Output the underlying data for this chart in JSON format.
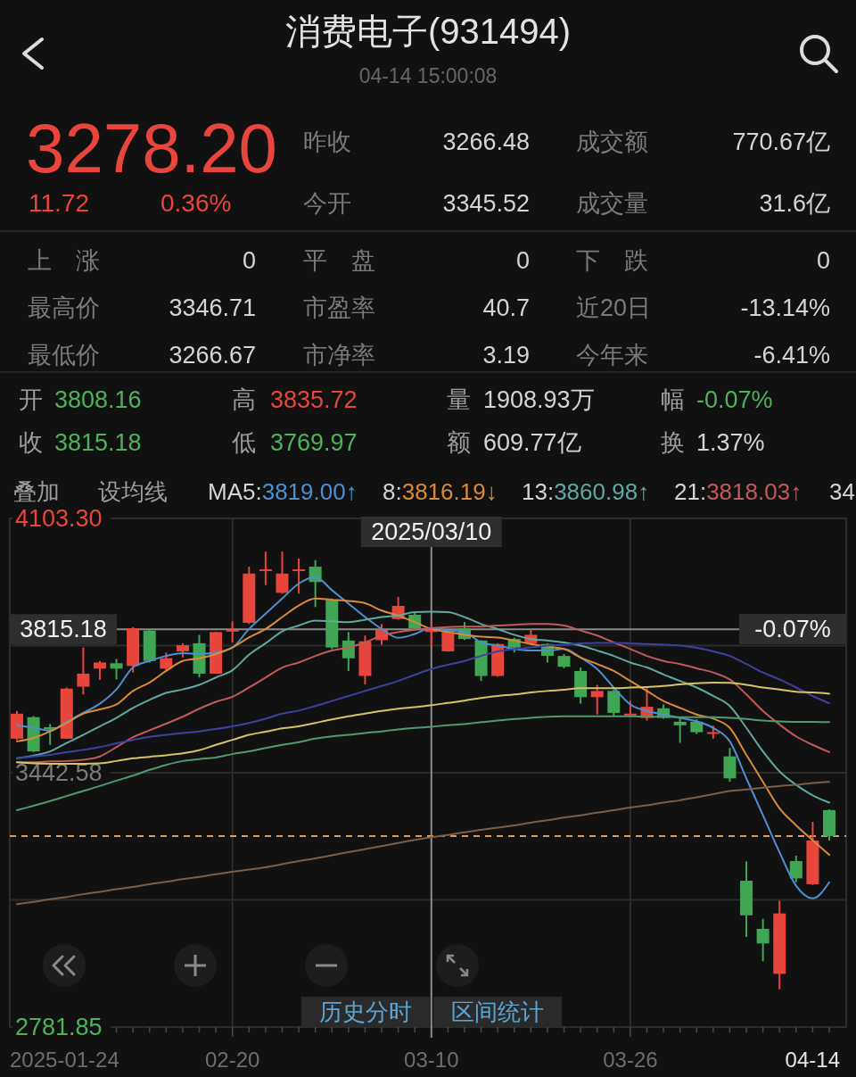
{
  "chart_data": {
    "type": "candlestick",
    "title": "消费电子(931494)",
    "subtitle": "04-14 15:00:08",
    "categories": [
      null,
      null,
      null,
      null,
      null,
      null,
      null,
      null,
      null,
      null,
      null,
      null,
      null,
      "02-20",
      null,
      null,
      null,
      null,
      null,
      null,
      null,
      null,
      null,
      null,
      null,
      "03-10",
      null,
      null,
      null,
      null,
      null,
      null,
      null,
      null,
      null,
      null,
      null,
      "03-26",
      null,
      null,
      null,
      null,
      null,
      null,
      null,
      null,
      null,
      null,
      null,
      null
    ],
    "ohlc": [
      [
        3531,
        3603,
        3528,
        3596
      ],
      [
        3587,
        3590,
        3496,
        3498
      ],
      [
        3561,
        3569,
        3515,
        3555
      ],
      [
        3531,
        3664,
        3531,
        3661
      ],
      [
        3666,
        3768,
        3646,
        3700
      ],
      [
        3713,
        3733,
        3684,
        3729
      ],
      [
        3727,
        3738,
        3685,
        3713
      ],
      [
        3720,
        3821,
        3703,
        3818
      ],
      [
        3812,
        3814,
        3729,
        3733
      ],
      [
        3713,
        3755,
        3707,
        3740
      ],
      [
        3758,
        3779,
        3742,
        3774
      ],
      [
        3779,
        3801,
        3690,
        3700
      ],
      [
        3700,
        3809,
        3700,
        3808
      ],
      [
        3810,
        3836,
        3781,
        3814
      ],
      [
        3832,
        3978,
        3829,
        3960
      ],
      [
        3967,
        4017,
        3930,
        3971
      ],
      [
        3910,
        4017,
        3908,
        3960
      ],
      [
        3967,
        3999,
        3908,
        3971
      ],
      [
        3978,
        3995,
        3873,
        3938
      ],
      [
        3892,
        3895,
        3764,
        3768
      ],
      [
        3786,
        3808,
        3707,
        3740
      ],
      [
        3694,
        3799,
        3672,
        3784
      ],
      [
        3787,
        3829,
        3775,
        3814
      ],
      [
        3842,
        3899,
        3840,
        3876
      ],
      [
        3853,
        3860,
        3816,
        3818
      ],
      [
        3808.16,
        3835.72,
        3769.97,
        3815.18
      ],
      [
        3758,
        3810,
        3757,
        3808
      ],
      [
        3818,
        3834,
        3787,
        3790
      ],
      [
        3786,
        3787,
        3681,
        3694
      ],
      [
        3694,
        3779,
        3692,
        3777
      ],
      [
        3790,
        3793,
        3755,
        3768
      ],
      [
        3779,
        3816,
        3777,
        3801
      ],
      [
        3777,
        3779,
        3729,
        3746
      ],
      [
        3746,
        3751,
        3714,
        3718
      ],
      [
        3707,
        3716,
        3622,
        3639
      ],
      [
        3639,
        3671,
        3594,
        3655
      ],
      [
        3655,
        3659,
        3589,
        3598
      ],
      [
        3594,
        3630,
        3593,
        3596
      ],
      [
        3585,
        3662,
        3578,
        3614
      ],
      [
        3610,
        3620,
        3583,
        3585
      ],
      [
        3575,
        3585,
        3520,
        3566
      ],
      [
        3575,
        3581,
        3543,
        3548
      ],
      [
        3544,
        3565,
        3531,
        3548
      ],
      [
        3485,
        3507,
        3419,
        3428
      ],
      [
        3162,
        3212,
        3016,
        3072
      ],
      [
        3037,
        3063,
        2953,
        2999
      ],
      [
        2920,
        3110,
        2880,
        3077
      ],
      [
        3213,
        3227,
        3158,
        3168
      ],
      [
        3153,
        3315,
        3151,
        3266.48
      ],
      [
        3345.52,
        3346.71,
        3266.67,
        3278.2
      ]
    ],
    "colors": [
      "#e8453c",
      "#3fa653",
      "#3fa653",
      "#e8453c",
      "#e8453c",
      "#e8453c",
      "#3fa653",
      "#e8453c",
      "#3fa653",
      "#e8453c",
      "#e8453c",
      "#3fa653",
      "#e8453c",
      "#e8453c",
      "#e8453c",
      "#e8453c",
      "#e8453c",
      "#e8453c",
      "#3fa653",
      "#3fa653",
      "#3fa653",
      "#e8453c",
      "#e8453c",
      "#e8453c",
      "#3fa653",
      "#e8453c",
      "#e8453c",
      "#3fa653",
      "#3fa653",
      "#e8453c",
      "#3fa653",
      "#e8453c",
      "#3fa653",
      "#3fa653",
      "#3fa653",
      "#e8453c",
      "#3fa653",
      "#e8453c",
      "#e8453c",
      "#3fa653",
      "#3fa653",
      "#3fa653",
      "#e8453c",
      "#3fa653",
      "#3fa653",
      "#3fa653",
      "#e8453c",
      "#3fa653",
      "#e8453c",
      "#3fa653"
    ],
    "series": [
      {
        "type": "line",
        "color": "#4e8fd0",
        "values": [
          3566,
          3559,
          3552,
          3575,
          3598,
          3622,
          3659,
          3716,
          3733,
          3746,
          3753,
          3751,
          3755,
          3768,
          3816,
          3856,
          3895,
          3934,
          3951,
          3917,
          3882,
          3847,
          3816,
          3793,
          3803,
          3819.0,
          3812,
          3808,
          3781,
          3773,
          3764,
          3760,
          3760,
          3764,
          3742,
          3712,
          3664,
          3620,
          3603,
          3594,
          3585,
          3576,
          3559,
          3524,
          3428,
          3332,
          3236,
          3149,
          3116,
          3158
        ]
      },
      {
        "type": "line",
        "color": "#d98a3a",
        "values": [
          3524,
          3533,
          3550,
          3572,
          3596,
          3607,
          3620,
          3655,
          3677,
          3707,
          3733,
          3740,
          3751,
          3768,
          3794,
          3816,
          3847,
          3877,
          3895,
          3892,
          3889,
          3883,
          3864,
          3851,
          3834,
          3816.19,
          3808,
          3801,
          3796,
          3794,
          3786,
          3777,
          3770,
          3764,
          3742,
          3725,
          3707,
          3681,
          3655,
          3629,
          3611,
          3594,
          3583,
          3559,
          3489,
          3419,
          3350,
          3306,
          3267,
          3229
        ]
      },
      {
        "type": "line",
        "color": "#5fa9a0",
        "values": [
          3480,
          3487,
          3498,
          3520,
          3541,
          3563,
          3585,
          3611,
          3632,
          3650,
          3659,
          3671,
          3690,
          3709,
          3749,
          3779,
          3810,
          3825,
          3838,
          3836,
          3834,
          3840,
          3847,
          3851,
          3860,
          3860.98,
          3860,
          3847,
          3829,
          3816,
          3801,
          3790,
          3786,
          3781,
          3773,
          3760,
          3746,
          3729,
          3716,
          3698,
          3681,
          3664,
          3642,
          3616,
          3559,
          3498,
          3446,
          3411,
          3384,
          3365
        ]
      },
      {
        "type": "line",
        "color": "#c05a5a",
        "values": [
          3470,
          3470,
          3472,
          3473,
          3476,
          3485,
          3509,
          3535,
          3553,
          3570,
          3588,
          3609,
          3627,
          3640,
          3664,
          3690,
          3716,
          3729,
          3746,
          3760,
          3768,
          3781,
          3799,
          3808,
          3814,
          3818.03,
          3821,
          3822,
          3822,
          3825,
          3827,
          3829,
          3829,
          3825,
          3812,
          3799,
          3781,
          3764,
          3746,
          3733,
          3725,
          3714,
          3703,
          3685,
          3646,
          3603,
          3568,
          3537,
          3515,
          3496
        ]
      },
      {
        "type": "line",
        "color": "#3d40a0",
        "values": [
          3480,
          3485,
          3489,
          3496,
          3502,
          3509,
          3519,
          3528,
          3536,
          3541,
          3546,
          3550,
          3556,
          3563,
          3572,
          3583,
          3596,
          3604,
          3616,
          3629,
          3642,
          3655,
          3668,
          3681,
          3697,
          3712,
          3723,
          3733,
          3746,
          3758,
          3764,
          3768,
          3773,
          3775,
          3779,
          3780,
          3780,
          3779,
          3777,
          3775,
          3773,
          3767,
          3758,
          3746,
          3725,
          3703,
          3685,
          3664,
          3642,
          3623
        ]
      },
      {
        "type": "line",
        "color": "#d8c264",
        "values": [
          3470,
          3467,
          3466,
          3466,
          3466,
          3467,
          3473,
          3480,
          3484,
          3488,
          3493,
          3501,
          3515,
          3528,
          3541,
          3549,
          3558,
          3563,
          3572,
          3581,
          3589,
          3596,
          3603,
          3609,
          3613,
          3618,
          3624,
          3630,
          3637,
          3642,
          3646,
          3651,
          3655,
          3658,
          3662,
          3662,
          3662,
          3664,
          3665,
          3668,
          3672,
          3675,
          3677,
          3676,
          3671,
          3664,
          3659,
          3653,
          3651,
          3648
        ]
      },
      {
        "type": "line",
        "color": "#4f9a6e",
        "values": [
          3345,
          3357,
          3369,
          3382,
          3395,
          3408,
          3422,
          3435,
          3450,
          3463,
          3473,
          3478,
          3482,
          3491,
          3498,
          3507,
          3515,
          3522,
          3531,
          3537,
          3541,
          3546,
          3550,
          3555,
          3559,
          3562,
          3566,
          3569,
          3574,
          3578,
          3582,
          3585,
          3588,
          3589,
          3589,
          3589,
          3589,
          3589,
          3588,
          3588,
          3587,
          3587,
          3587,
          3585,
          3582,
          3578,
          3576,
          3575,
          3575,
          3574
        ]
      },
      {
        "type": "line",
        "color": "#7a5e48",
        "values": [
          3101,
          3107,
          3114,
          3120,
          3127,
          3133,
          3140,
          3146,
          3153,
          3159,
          3166,
          3172,
          3179,
          3185,
          3191,
          3197,
          3205,
          3213,
          3220,
          3228,
          3236,
          3244,
          3252,
          3260,
          3268,
          3275,
          3281,
          3288,
          3294,
          3300,
          3306,
          3313,
          3319,
          3326,
          3332,
          3339,
          3345,
          3352,
          3358,
          3365,
          3371,
          3379,
          3387,
          3395,
          3399,
          3404,
          3408,
          3411,
          3416,
          3419
        ]
      }
    ],
    "ylim": [
      2781.85,
      4103.3
    ],
    "yticks": [
      {
        "value": 2781.85,
        "label": "2781.85"
      },
      {
        "value": 3112.21,
        "label": null
      },
      {
        "value": 3442.58,
        "label": "3442.58"
      },
      {
        "value": 3772.94,
        "label": null
      },
      {
        "value": 4103.3,
        "label": "4103.30"
      }
    ],
    "grid": true,
    "ref_lines": [
      {
        "axis": "y",
        "value": 3815.18,
        "label": "3815.18",
        "color": "#8a8a8a"
      },
      {
        "axis": "x",
        "value": "03-10",
        "label": "2025/03/10",
        "color": "#8a8a8a"
      },
      {
        "axis": "y",
        "value": 3278.2,
        "color": "#e39a55",
        "line_style": "dashed"
      }
    ],
    "annotations": [
      "3278.20",
      "11.72",
      "0.36%",
      "昨收",
      "3266.48",
      "成交额",
      "770.67亿",
      "今开",
      "3345.52",
      "成交量",
      "31.6亿",
      "上　涨",
      "0",
      "平　盘",
      "0",
      "下　跌",
      "0",
      "最高价",
      "3346.71",
      "市盈率",
      "40.7",
      "近20日",
      "-13.14%",
      "最低价",
      "3266.67",
      "市净率",
      "3.19",
      "今年来",
      "-6.41%",
      "开",
      "3808.16",
      "高",
      "3835.72",
      "量",
      "1908.93万",
      "幅",
      "-0.07%",
      "收",
      "3815.18",
      "低",
      "3769.97",
      "额",
      "609.77亿",
      "换",
      "1.37%",
      "叠加",
      "设均线",
      "MA5:3819.00↑",
      "8:3816.19↓",
      "13:3860.98↑",
      "21:3818.03↑",
      "34",
      "-0.07%",
      "历史分时",
      "区间统计",
      "2025-01-24",
      "04-14"
    ]
  }
}
